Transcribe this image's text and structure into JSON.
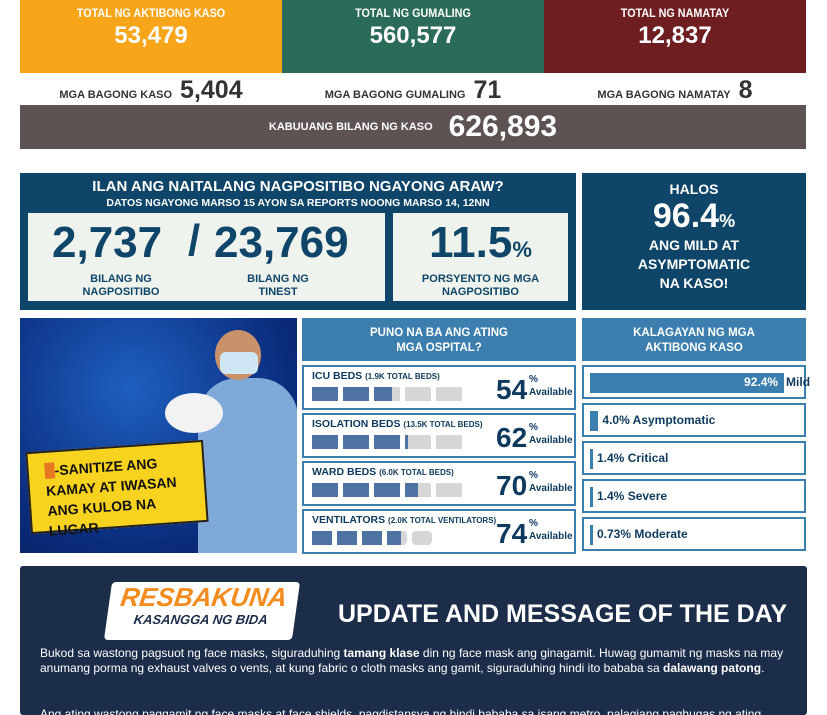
{
  "summary": {
    "active": {
      "label": "TOTAL NG AKTIBONG KASO",
      "value": "53,479",
      "color": "#F9A51A"
    },
    "recovered": {
      "label": "TOTAL NG GUMALING",
      "value": "560,577",
      "color": "#2B6B5A"
    },
    "deaths": {
      "label": "TOTAL NG NAMATAY",
      "value": "12,837",
      "color": "#6E1E20"
    },
    "new_cases": {
      "label": "MGA BAGONG KASO",
      "value": "5,404"
    },
    "new_recovered": {
      "label": "MGA BAGONG GUMALING",
      "value": "71"
    },
    "new_deaths": {
      "label": "MGA BAGONG NAMATAY",
      "value": "8"
    },
    "total": {
      "label": "KABUUANG BILANG NG KASO",
      "value": "626,893"
    }
  },
  "positivity": {
    "title": "ILAN ANG NAITALANG NAGPOSITIBO NGAYONG ARAW?",
    "subtitle": "DATOS NGAYONG MARSO 15 AYON SA REPORTS NOONG MARSO 14, 12NN",
    "positive": "2,737",
    "positive_label_1": "BILANG NG",
    "positive_label_2": "NAGPOSITIBO",
    "slash": "/",
    "tested": "23,769",
    "tested_label_1": "BILANG NG",
    "tested_label_2": "TINEST",
    "rate": "11.5",
    "rate_unit": "%",
    "rate_label_1": "PORSYENTO NG MGA",
    "rate_label_2": "NAGPOSITIBO"
  },
  "mild": {
    "line1": "HALOS",
    "value": "96.4",
    "unit": "%",
    "line2": "ANG MILD AT",
    "line3": "ASYMPTOMATIC",
    "line4": "NA KASO!"
  },
  "banner": {
    "i": "I",
    "line1": "-SANITIZE ANG",
    "line2": "KAMAY AT IWASAN",
    "line3": "ANG KULOB NA LUGAR"
  },
  "hospital": {
    "title_1": "PUNO NA BA ANG ATING",
    "title_2": "MGA OSPITAL?",
    "rows": [
      {
        "name": "ICU BEDS",
        "total": "(1.9K TOTAL BEDS)",
        "available": 54,
        "icon": "bed-icon"
      },
      {
        "name": "ISOLATION BEDS",
        "total": "(13.5K TOTAL BEDS)",
        "available": 62,
        "icon": "bed-icon"
      },
      {
        "name": "WARD BEDS",
        "total": "(6.0K TOTAL BEDS)",
        "available": 70,
        "icon": "bed-icon"
      },
      {
        "name": "VENTILATORS",
        "total": "(2.0K TOTAL VENTILATORS)",
        "available": 74,
        "icon": "ventilator-icon"
      }
    ],
    "pct_sign": "%",
    "available_label": "Available"
  },
  "status": {
    "title_1": "KALAGAYAN NG MGA",
    "title_2": "AKTIBONG KASO",
    "rows": [
      {
        "pct": "92.4%",
        "label": "Mild",
        "value": 92.4
      },
      {
        "pct": "4.0%",
        "label": "Asymptomatic",
        "value": 4.0
      },
      {
        "pct": "1.4%",
        "label": "Critical",
        "value": 1.4
      },
      {
        "pct": "1.4%",
        "label": "Severe",
        "value": 1.4
      },
      {
        "pct": "0.73%",
        "label": "Moderate",
        "value": 0.73
      }
    ],
    "color": "#3C7FAE"
  },
  "message": {
    "logo_top": "RESBAKUNA",
    "logo_bottom": "KASANGGA NG BIDA",
    "title": "UPDATE AND MESSAGE OF THE DAY",
    "p1_a": "Bukod sa wastong pagsuot ng face masks, siguraduhing ",
    "p1_b": "tamang klase",
    "p1_c": " din ng face mask ang ginagamit. Huwag gumamit ng masks na may anumang porma ng exhaust valves o vents, at kung fabric o cloth masks ang gamit, siguraduhing hindi ito bababa sa ",
    "p1_d": "dalawang patong",
    "p1_e": ".",
    "p2": "Ang ating wastong paggamit ng face masks at face shields, pagdistansya ng hindi bababa sa isang metro, palagiang paghugas ng ating"
  }
}
